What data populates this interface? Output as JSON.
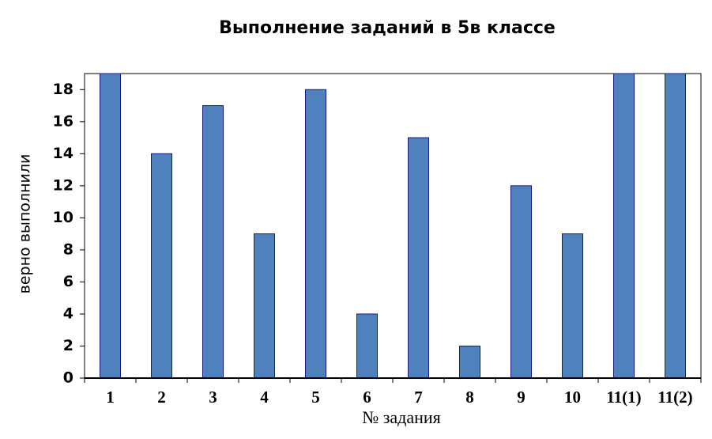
{
  "chart_data": {
    "type": "bar",
    "title": "Выполнение заданий в 5в классе",
    "x_label": "№ задания",
    "y_label": "верно выполнили",
    "categories": [
      "1",
      "2",
      "3",
      "4",
      "5",
      "6",
      "7",
      "8",
      "9",
      "10",
      "11(1)",
      "11(2)"
    ],
    "values": [
      19,
      14,
      17,
      9,
      18,
      4,
      15,
      2,
      12,
      9,
      19,
      19
    ],
    "color": "#4f81bd",
    "edge_color": "#1a1a80",
    "ylim": [
      0,
      19
    ],
    "yticks": [
      0,
      2,
      4,
      6,
      8,
      10,
      12,
      14,
      16,
      18
    ],
    "grid": false
  }
}
